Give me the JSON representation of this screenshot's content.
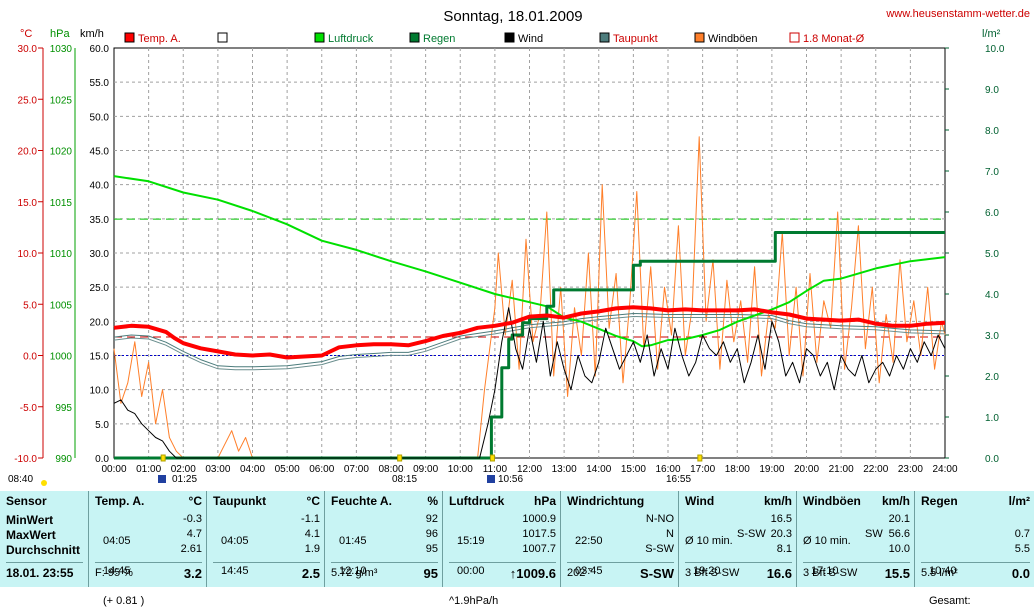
{
  "title": "Sonntag, 18.01.2009",
  "site_url": "www.heusenstamm-wetter.de",
  "units": {
    "temp": "°C",
    "pressure": "hPa",
    "wind": "km/h",
    "rain": "l/m²"
  },
  "legend": [
    {
      "label": "Temp. A.",
      "color": "#ff0000",
      "style": "fill"
    },
    {
      "label": "",
      "color": "#ffffff",
      "style": "fill"
    },
    {
      "label": "Luftdruck",
      "color": "#00e000",
      "style": "fill"
    },
    {
      "label": "Regen",
      "color": "#007a30",
      "style": "fill"
    },
    {
      "label": "Wind",
      "color": "#000000",
      "style": "fill"
    },
    {
      "label": "Taupunkt",
      "color": "#4c7c7c",
      "style": "fill"
    },
    {
      "label": "Windböen",
      "color": "#ff7f2a",
      "style": "fill"
    },
    {
      "label": "1.8 Monat-Ø",
      "color": "#cc0000",
      "style": "outline"
    }
  ],
  "marker_labels": [
    "08:40",
    "01:25",
    "08:15",
    "10:56",
    "16:55"
  ],
  "chart_data": {
    "type": "line",
    "title": "Sonntag, 18.01.2009",
    "x_ticks": [
      "00:00",
      "01:00",
      "02:00",
      "03:00",
      "04:00",
      "05:00",
      "06:00",
      "07:00",
      "08:00",
      "09:00",
      "10:00",
      "11:00",
      "12:00",
      "13:00",
      "14:00",
      "15:00",
      "16:00",
      "17:00",
      "18:00",
      "19:00",
      "20:00",
      "21:00",
      "22:00",
      "23:00",
      "24:00"
    ],
    "axes": {
      "temp": {
        "unit": "°C",
        "range": [
          -10,
          30
        ],
        "ticks": [
          "30.0",
          "25.0",
          "20.0",
          "15.0",
          "10.0",
          "5.0",
          "0.0",
          "-5.0",
          "-10.0"
        ]
      },
      "pressure": {
        "unit": "hPa",
        "range": [
          990,
          1030
        ],
        "ticks": [
          "1030",
          "1025",
          "1020",
          "1015",
          "1010",
          "1005",
          "1000",
          "995",
          "990"
        ]
      },
      "wind": {
        "unit": "km/h",
        "range": [
          0,
          60
        ],
        "ticks": [
          "60.0",
          "55.0",
          "50.0",
          "45.0",
          "40.0",
          "35.0",
          "30.0",
          "25.0",
          "20.0",
          "15.0",
          "10.0",
          "5.0",
          "0.0"
        ]
      },
      "rain": {
        "unit": "l/m²",
        "range": [
          0,
          10
        ],
        "ticks": [
          "10.0",
          "9.0",
          "8.0",
          "7.0",
          "6.0",
          "5.0",
          "4.0",
          "3.0",
          "2.0",
          "1.0",
          "0.0"
        ]
      }
    },
    "reference_lines": [
      {
        "name": "1.8 Monat-Ø",
        "axis": "temp",
        "value": 1.8,
        "color": "#cc0000"
      },
      {
        "axis": "temp",
        "value": 0.0,
        "color": "#0000cc"
      },
      {
        "axis": "pressure",
        "value": 1013.3,
        "color": "#00c000"
      }
    ],
    "series": [
      {
        "name": "Temp. A.",
        "axis": "temp",
        "color": "#ff0000",
        "x": [
          0,
          0.5,
          1,
          1.5,
          1.75,
          2,
          2.5,
          3,
          3.5,
          4,
          4.5,
          5,
          5.5,
          6,
          6.5,
          7,
          7.5,
          8,
          8.5,
          9,
          9.5,
          10,
          10.5,
          11,
          11.5,
          12,
          12.5,
          13,
          13.5,
          14,
          14.5,
          15,
          15.5,
          16,
          16.5,
          17,
          17.5,
          18,
          18.5,
          19,
          19.5,
          20,
          20.5,
          21,
          21.5,
          22,
          22.5,
          23,
          23.5,
          24
        ],
        "y": [
          2.7,
          2.9,
          2.8,
          2.3,
          1.7,
          1.2,
          0.7,
          0.4,
          0.1,
          0.0,
          0.1,
          -0.2,
          -0.1,
          0.0,
          0.8,
          1.0,
          1.1,
          1.1,
          1.0,
          1.4,
          1.9,
          2.2,
          2.7,
          2.9,
          3.2,
          3.8,
          3.9,
          3.7,
          4.1,
          4.3,
          4.6,
          4.7,
          4.6,
          4.4,
          4.5,
          4.4,
          4.4,
          4.4,
          4.5,
          4.2,
          4.0,
          3.6,
          3.5,
          3.4,
          3.5,
          3.1,
          2.9,
          2.9,
          3.1,
          3.2
        ]
      },
      {
        "name": "Taupunkt",
        "axis": "temp",
        "color": "#4c7c7c",
        "x": [
          0,
          0.5,
          1,
          1.5,
          2,
          2.5,
          3,
          3.5,
          4,
          5,
          6,
          6.5,
          7,
          8,
          8.5,
          9,
          9.5,
          10,
          11,
          11.5,
          12,
          13,
          13.5,
          14,
          15,
          16,
          17,
          18,
          19,
          19.5,
          20,
          21,
          22,
          23,
          24
        ],
        "y": [
          1.8,
          2.0,
          1.9,
          1.3,
          0.4,
          -0.4,
          -1.0,
          -1.1,
          -1.1,
          -1.0,
          -0.6,
          -0.1,
          0.1,
          0.3,
          0.3,
          0.7,
          1.3,
          1.9,
          2.4,
          2.7,
          3.0,
          3.3,
          3.6,
          3.8,
          4.1,
          4.0,
          4.0,
          4.0,
          3.9,
          3.4,
          3.1,
          2.9,
          2.8,
          2.5,
          2.4
        ]
      },
      {
        "name": "Luftdruck",
        "axis": "pressure",
        "color": "#00e000",
        "x": [
          0,
          1,
          2,
          3,
          4,
          5,
          6,
          7,
          8,
          9,
          10,
          11,
          12,
          12.5,
          13,
          13.5,
          14,
          14.5,
          15,
          15.25,
          15.5,
          16,
          16.5,
          17,
          17.5,
          18,
          18.5,
          19,
          19.5,
          20,
          20.5,
          21,
          22,
          23,
          24
        ],
        "y": [
          1017.5,
          1017.0,
          1015.9,
          1015.2,
          1014.1,
          1012.8,
          1011.2,
          1010.3,
          1009.2,
          1008.2,
          1007.1,
          1006.0,
          1005.2,
          1004.8,
          1003.7,
          1003.3,
          1002.6,
          1001.9,
          1001.4,
          1000.9,
          1001.0,
          1001.5,
          1001.6,
          1002.0,
          1002.5,
          1003.3,
          1003.9,
          1004.5,
          1005.2,
          1006.3,
          1007.3,
          1007.5,
          1008.5,
          1009.2,
          1009.6
        ]
      },
      {
        "name": "Regen",
        "axis": "rain",
        "color": "#007a30",
        "x": [
          0,
          10.56,
          10.9,
          11.2,
          11.4,
          11.5,
          11.8,
          12.0,
          12.5,
          12.7,
          13.0,
          14.0,
          14.5,
          15.0,
          15.2,
          15.6,
          17.0,
          18.0,
          19.0,
          19.1,
          19.6,
          24
        ],
        "y": [
          0,
          0,
          1.0,
          2.2,
          2.9,
          3.0,
          3.3,
          3.4,
          3.7,
          4.1,
          4.1,
          4.1,
          4.1,
          4.7,
          4.8,
          4.8,
          4.8,
          4.8,
          4.8,
          5.5,
          5.5,
          5.5
        ]
      },
      {
        "name": "Wind",
        "axis": "wind",
        "color": "#000000",
        "x": [
          0,
          0.2,
          0.4,
          0.6,
          0.8,
          1.0,
          1.2,
          1.4,
          1.6,
          1.8,
          2,
          10.56,
          10.8,
          11,
          11.2,
          11.4,
          11.6,
          11.8,
          12,
          12.2,
          12.4,
          12.6,
          12.8,
          13,
          13.2,
          13.4,
          13.6,
          13.8,
          14,
          14.2,
          14.4,
          14.6,
          14.8,
          15,
          15.2,
          15.4,
          15.6,
          15.8,
          16,
          16.2,
          16.4,
          16.6,
          16.8,
          17,
          17.2,
          17.4,
          17.6,
          17.8,
          18,
          18.2,
          18.4,
          18.6,
          18.8,
          19,
          19.2,
          19.4,
          19.6,
          19.8,
          20,
          20.2,
          20.4,
          20.6,
          20.8,
          21,
          21.2,
          21.4,
          21.6,
          21.8,
          22,
          22.2,
          22.4,
          22.6,
          22.8,
          23,
          23.2,
          23.4,
          23.6,
          23.8,
          24
        ],
        "y": [
          8,
          8.5,
          7,
          6.5,
          5,
          4,
          3,
          2.5,
          1,
          0,
          0,
          0,
          5,
          10,
          17,
          22,
          16,
          13,
          19,
          14,
          20,
          12,
          17,
          13,
          10,
          15,
          12,
          11,
          14,
          19,
          16,
          13,
          15,
          17,
          14,
          18,
          12,
          16,
          13,
          19,
          15,
          12,
          14,
          18,
          16,
          15,
          17,
          14,
          16,
          11,
          14,
          18,
          13,
          20,
          17,
          12,
          14,
          11,
          16,
          15,
          12,
          14,
          10,
          15,
          13,
          12,
          15,
          11,
          13,
          14,
          12,
          15,
          13,
          16,
          14,
          17,
          15,
          18,
          16
        ]
      },
      {
        "name": "Windböen",
        "axis": "wind",
        "color": "#ff7f2a",
        "x": [
          0,
          0.2,
          0.4,
          0.6,
          0.8,
          1.0,
          1.2,
          1.4,
          1.6,
          1.8,
          2,
          2.2,
          2.5,
          3,
          3.2,
          3.4,
          3.6,
          3.8,
          4,
          10.5,
          10.7,
          11,
          11.1,
          11.3,
          11.5,
          11.7,
          11.9,
          12.1,
          12.3,
          12.5,
          12.7,
          12.9,
          13.1,
          13.3,
          13.5,
          13.7,
          13.9,
          14.1,
          14.3,
          14.5,
          14.7,
          14.9,
          15.1,
          15.3,
          15.5,
          15.7,
          15.9,
          16.1,
          16.3,
          16.5,
          16.7,
          16.9,
          17.1,
          17.3,
          17.5,
          17.7,
          17.9,
          18.1,
          18.3,
          18.5,
          18.7,
          18.9,
          19.1,
          19.3,
          19.5,
          19.7,
          19.9,
          20.1,
          20.3,
          20.5,
          20.7,
          20.9,
          21.1,
          21.3,
          21.5,
          21.7,
          21.9,
          22.1,
          22.3,
          22.5,
          22.7,
          22.9,
          23.1,
          23.3,
          23.5,
          23.7,
          23.9,
          24
        ],
        "y": [
          16,
          8,
          11,
          17,
          9,
          14,
          5,
          10,
          3,
          1,
          0,
          0,
          0,
          0,
          2,
          4,
          1,
          3,
          0,
          0,
          10,
          22,
          30,
          18,
          26,
          13,
          32,
          17,
          21,
          36,
          12,
          25,
          9,
          22,
          15,
          30,
          12,
          40,
          19,
          27,
          11,
          23,
          39,
          16,
          28,
          13,
          25,
          18,
          34,
          15,
          22,
          47,
          20,
          29,
          13,
          26,
          17,
          23,
          14,
          28,
          12,
          21,
          19,
          33,
          15,
          25,
          12,
          27,
          14,
          23,
          19,
          36,
          13,
          22,
          34,
          16,
          25,
          11,
          21,
          14,
          29,
          17,
          23,
          15,
          25,
          13,
          20,
          18
        ]
      }
    ]
  },
  "stats": {
    "sensor": {
      "header": "Sensor",
      "rows": [
        "MinWert",
        "MaxWert",
        "Durchschnitt"
      ],
      "footer": "18.01.  23:55"
    },
    "temp": {
      "header": "Temp. A.",
      "unit": "°C",
      "rows": [
        {
          "a": "04:05",
          "b": "-0.3"
        },
        {
          "a": "14:45",
          "b": "4.7"
        },
        {
          "a": "(+ 0.81 )",
          "b": "2.61"
        }
      ],
      "footer_a": "F: 95 %",
      "footer_b": "3.2"
    },
    "dew": {
      "header": "Taupunkt",
      "unit": "°C",
      "rows": [
        {
          "a": "04:05",
          "b": "-1.1"
        },
        {
          "a": "14:45",
          "b": "4.1"
        },
        {
          "a": "",
          "b": "1.9"
        }
      ],
      "footer_a": "",
      "footer_b": "2.5"
    },
    "humidity": {
      "header": "Feuchte A.",
      "unit": "%",
      "rows": [
        {
          "a": "01:45",
          "b": "92"
        },
        {
          "a": "12:10",
          "b": "96"
        },
        {
          "a": "",
          "b": "95"
        }
      ],
      "footer_a": "5.72 g/m³",
      "footer_b": "95"
    },
    "pressure": {
      "header": "Luftdruck",
      "unit": "hPa",
      "rows": [
        {
          "a": "15:19",
          "b": "1000.9"
        },
        {
          "a": "00:00",
          "b": "1017.5"
        },
        {
          "a": "^1.9hPa/h",
          "b": "1007.7"
        }
      ],
      "footer_a": "",
      "footer_b": "↑1009.6"
    },
    "winddir": {
      "header": "Windrichtung",
      "unit": "",
      "rows": [
        {
          "a": "22:50",
          "b": "N-NO"
        },
        {
          "a": "03:45",
          "b": "N"
        },
        {
          "a": "",
          "b": "S-SW"
        }
      ],
      "footer_a": "202 °",
      "footer_b": "S-SW"
    },
    "wind": {
      "header": "Wind",
      "unit": "km/h",
      "rows": [
        {
          "a": "Ø 10 min.",
          "b": "16.5"
        },
        {
          "a": "19:20",
          "m": "S-SW",
          "b": "20.3"
        },
        {
          "a": "",
          "b": "8.1"
        }
      ],
      "footer_a": "3 Bft S-SW",
      "footer_b": "16.6"
    },
    "gust": {
      "header": "Windböen",
      "unit": "km/h",
      "rows": [
        {
          "a": "Ø 10 min.",
          "b": "20.1"
        },
        {
          "a": "17:10",
          "m": "SW",
          "b": "56.6"
        },
        {
          "a": "",
          "b": "10.0"
        }
      ],
      "footer_a": "3 Bft S-SW",
      "footer_b": "15.5"
    },
    "rain": {
      "header": "Regen",
      "unit": "l/m²",
      "rows": [
        {
          "a": "",
          "b": ""
        },
        {
          "a": "10:40",
          "b": "0.7"
        },
        {
          "a": "Gesamt:",
          "b": "5.5"
        }
      ],
      "footer_a": "5.5 l/m²",
      "footer_b": "0.0"
    }
  }
}
